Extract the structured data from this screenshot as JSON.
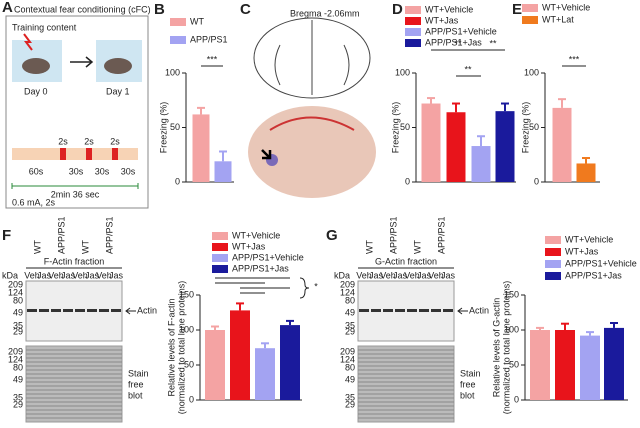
{
  "panels": {
    "A": {
      "letter": "A",
      "title": "Contextual fear conditioning (cFC)",
      "training": "Training content",
      "day0": "Day 0",
      "day1": "Day 1",
      "shocks": [
        "2s",
        "2s",
        "2s"
      ],
      "intervals": [
        "60s",
        "30s",
        "30s",
        "30s"
      ],
      "total": "2min 36 sec",
      "note": "0.6 mA, 2s"
    },
    "B": {
      "letter": "B"
    },
    "C": {
      "letter": "C",
      "bregma": "Bregma -2.06mm"
    },
    "D": {
      "letter": "D"
    },
    "E": {
      "letter": "E"
    },
    "F": {
      "letter": "F",
      "groups": [
        "WT",
        "APP/PS1",
        "WT",
        "APP/PS1"
      ],
      "fraction": "F-Actin fraction",
      "lanes": [
        "Veh",
        "Jas",
        "Veh",
        "Jas",
        "Veh",
        "Jas",
        "Veh",
        "Jas"
      ],
      "kda": "kDa",
      "markers_top": [
        "209",
        "124",
        "80",
        "49",
        "35",
        "29"
      ],
      "band": "Actin",
      "markers_bottom": [
        "209",
        "124",
        "80",
        "49",
        "35",
        "29"
      ],
      "stain": [
        "Stain",
        "free",
        "blot"
      ]
    },
    "G": {
      "letter": "G",
      "groups": [
        "WT",
        "APP/PS1",
        "WT",
        "APP/PS1"
      ],
      "fraction": "G-Actin fraction",
      "lanes": [
        "Veh",
        "Jas",
        "Veh",
        "Jas",
        "Veh",
        "Jas",
        "Veh",
        "Jas"
      ],
      "kda": "kDa",
      "markers_top": [
        "209",
        "124",
        "80",
        "49",
        "35",
        "29"
      ],
      "band": "Actin",
      "markers_bottom": [
        "209",
        "124",
        "80",
        "49",
        "35",
        "29"
      ],
      "stain": [
        "Stain",
        "free",
        "blot"
      ]
    }
  },
  "chart_data": [
    {
      "type": "bar",
      "categories": [
        "WT",
        "APP/PS1"
      ],
      "values": [
        62,
        19
      ],
      "errors": [
        6,
        9
      ],
      "colors": [
        "#f4a3a3",
        "#a3a3f2"
      ],
      "ylabel": [
        "Freezing (%)"
      ],
      "ylim": [
        0,
        100
      ],
      "yticks": [
        0,
        50,
        100
      ],
      "annotations": [
        "***"
      ]
    },
    {
      "type": "bar",
      "categories": [
        "WT+Vehicle",
        "WT+Jas",
        "APP/PS1+Vehicle",
        "APP/PS1+Jas"
      ],
      "values": [
        72,
        64,
        33,
        65
      ],
      "errors": [
        5,
        8,
        9,
        7
      ],
      "colors": [
        "#f4a3a3",
        "#e8141b",
        "#a3a3f2",
        "#1a1a9c"
      ],
      "ylabel": [
        "Freezing (%)"
      ],
      "ylim": [
        0,
        100
      ],
      "yticks": [
        0,
        50,
        100
      ],
      "annotations": [
        "**",
        "**",
        "**"
      ]
    },
    {
      "type": "bar",
      "categories": [
        "WT+Vehicle",
        "WT+Lat"
      ],
      "values": [
        68,
        17
      ],
      "errors": [
        8,
        5
      ],
      "colors": [
        "#f4a3a3",
        "#f07a1e"
      ],
      "ylabel": [
        "Freezing (%)"
      ],
      "ylim": [
        0,
        100
      ],
      "yticks": [
        0,
        50,
        100
      ],
      "annotations": [
        "***"
      ]
    },
    {
      "type": "bar",
      "categories": [
        "WT+Vehicle",
        "WT+Jas",
        "APP/PS1+Vehicle",
        "APP/PS1+Jas"
      ],
      "values": [
        100,
        128,
        74,
        107
      ],
      "errors": [
        5,
        10,
        7,
        6
      ],
      "colors": [
        "#f4a3a3",
        "#e8141b",
        "#a3a3f2",
        "#1a1a9c"
      ],
      "ylabel": [
        "Relative levels of F-actin",
        "(normalized to total lane proteins)"
      ],
      "ylim": [
        0,
        150
      ],
      "yticks": [
        0,
        50,
        100,
        150
      ],
      "annotations": [
        "*"
      ]
    },
    {
      "type": "bar",
      "categories": [
        "WT+Vehicle",
        "WT+Jas",
        "APP/PS1+Vehicle",
        "APP/PS1+Jas"
      ],
      "values": [
        100,
        100,
        92,
        103
      ],
      "errors": [
        3,
        9,
        5,
        7
      ],
      "colors": [
        "#f4a3a3",
        "#e8141b",
        "#a3a3f2",
        "#1a1a9c"
      ],
      "ylabel": [
        "Relative levels of G-actin",
        "(normalized to total lane proteins)"
      ],
      "ylim": [
        0,
        150
      ],
      "yticks": [
        0,
        50,
        100,
        150
      ],
      "annotations": []
    }
  ]
}
